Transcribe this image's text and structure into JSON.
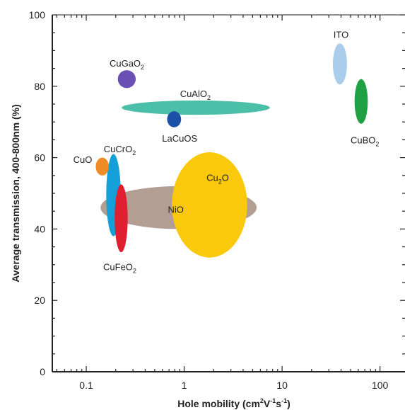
{
  "chart_data": {
    "type": "scatter",
    "xlabel": "Hole mobility (cm²V⁻¹s⁻¹)",
    "xlabel_parts": {
      "main": "Hole mobility (cm",
      "sup1": "2",
      "mid1": "V",
      "sup2": "-1",
      "mid2": "s",
      "sup3": "-1",
      "end": ")"
    },
    "ylabel": "Average transmission, 400-800nm (%)",
    "x_scale": "log",
    "xlim": [
      0.045,
      180
    ],
    "ylim": [
      0,
      100
    ],
    "grid": false,
    "x_ticks": [
      0.1,
      1,
      10,
      100
    ],
    "x_tick_labels": [
      "0.1",
      "1",
      "10",
      "100"
    ],
    "y_ticks": [
      0,
      20,
      40,
      60,
      80,
      100
    ],
    "y_tick_labels": [
      "0",
      "20",
      "40",
      "60",
      "80",
      "100"
    ],
    "regions": [
      {
        "label": "NiO",
        "label_parts": [
          "NiO"
        ],
        "x_min": 0.14,
        "x_max": 5.5,
        "y_min": 40,
        "y_max": 52,
        "color": "#b39e93",
        "label_x": 0.82,
        "label_y": 45.5
      },
      {
        "label": "Cu₂O",
        "label_parts": [
          "Cu",
          "2",
          "O"
        ],
        "x_min": 0.75,
        "x_max": 4.4,
        "y_min": 32,
        "y_max": 61.5,
        "color": "#fbc90b",
        "label_x": 2.2,
        "label_y": 54.5
      },
      {
        "label": "CuCrO₂",
        "label_parts": [
          "CuCrO",
          "2"
        ],
        "x_min": 0.16,
        "x_max": 0.225,
        "y_min": 38,
        "y_max": 61,
        "color": "#149fd8",
        "label_x": 0.22,
        "label_y": 62.5
      },
      {
        "label": "CuFeO₂",
        "label_parts": [
          "CuFeO",
          "2"
        ],
        "x_min": 0.195,
        "x_max": 0.265,
        "y_min": 33.5,
        "y_max": 52.5,
        "color": "#e02030",
        "label_x": 0.22,
        "label_y": 29.5
      },
      {
        "label": "CuO",
        "label_parts": [
          "CuO"
        ],
        "x_min": 0.125,
        "x_max": 0.17,
        "y_min": 55,
        "y_max": 60,
        "color": "#f08c28",
        "label_x": 0.092,
        "label_y": 59.5
      },
      {
        "label": "CuGaO₂",
        "label_parts": [
          "CuGaO",
          "2"
        ],
        "x_min": 0.21,
        "x_max": 0.32,
        "y_min": 79.5,
        "y_max": 84.5,
        "color": "#6a4fb5",
        "label_x": 0.26,
        "label_y": 86.5
      },
      {
        "label": "CuAlO₂",
        "label_parts": [
          "CuAlO",
          "2"
        ],
        "x_min": 0.23,
        "x_max": 7.5,
        "y_min": 72,
        "y_max": 76,
        "color": "#4bbfa8",
        "label_x": 1.3,
        "label_y": 78
      },
      {
        "label": "LaCuOS",
        "label_parts": [
          "LaCuOS"
        ],
        "x_min": 0.67,
        "x_max": 0.93,
        "y_min": 68.5,
        "y_max": 73,
        "color": "#1c4fa8",
        "label_x": 0.9,
        "label_y": 65.5
      },
      {
        "label": "ITO",
        "label_parts": [
          "ITO"
        ],
        "x_min": 33,
        "x_max": 46,
        "y_min": 80.5,
        "y_max": 92,
        "color": "#a9cdea",
        "label_x": 40,
        "label_y": 94.5
      },
      {
        "label": "CuBO₂",
        "label_parts": [
          "CuBO",
          "2"
        ],
        "x_min": 55,
        "x_max": 75,
        "y_min": 69.5,
        "y_max": 82,
        "color": "#1fa143",
        "label_x": 70,
        "label_y": 65
      }
    ]
  }
}
